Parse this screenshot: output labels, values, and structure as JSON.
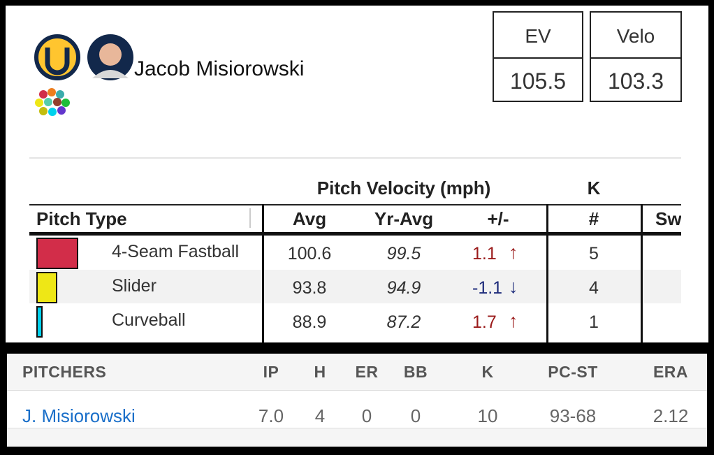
{
  "player": {
    "name": "Jacob Misiorowski"
  },
  "stat_boxes": [
    {
      "label": "EV",
      "value": "105.5"
    },
    {
      "label": "Velo",
      "value": "103.3"
    }
  ],
  "pitch_table": {
    "group_headers": [
      "Pitch Velocity (mph)",
      "K"
    ],
    "columns": [
      "Pitch Type",
      "Avg",
      "Yr-Avg",
      "+/-",
      "#",
      "Sw"
    ],
    "rows": [
      {
        "pitch": "4-Seam Fastball",
        "avg": "100.6",
        "yr_avg": "99.5",
        "diff": "1.1",
        "arrow": "↑",
        "k": "5"
      },
      {
        "pitch": "Slider",
        "avg": "93.8",
        "yr_avg": "94.9",
        "diff": "-1.1",
        "arrow": "↓",
        "k": "4"
      },
      {
        "pitch": "Curveball",
        "avg": "88.9",
        "yr_avg": "87.2",
        "diff": "1.7",
        "arrow": "↑",
        "k": "1"
      }
    ]
  },
  "box_score": {
    "columns": [
      "PITCHERS",
      "IP",
      "H",
      "ER",
      "BB",
      "K",
      "PC-ST",
      "ERA"
    ],
    "rows": [
      [
        "J. Misiorowski",
        "7.0",
        "4",
        "0",
        "0",
        "10",
        "93-68",
        "2.12"
      ]
    ]
  }
}
